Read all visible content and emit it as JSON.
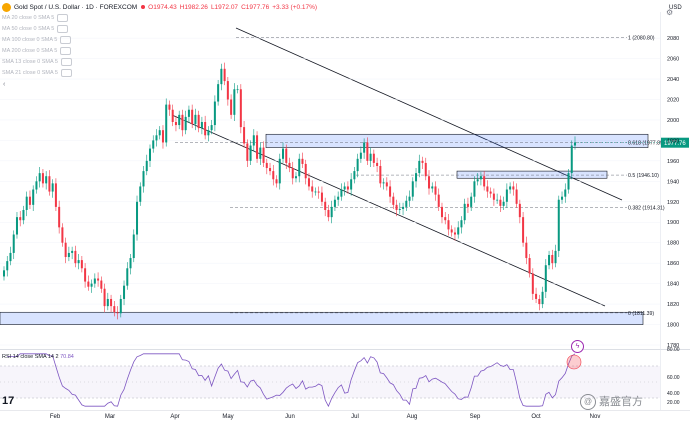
{
  "header": {
    "title": "Gold Spot / U.S. Dollar · 1D · FOREXCOM",
    "open": "O1974.43",
    "high": "H1982.26",
    "low": "L1972.07",
    "close": "C1977.76",
    "change": "+3.33 (+0.17%)"
  },
  "indicators": [
    "MA 20 close 0 SMA 5",
    "MA 50 close 0 SMA 5",
    "MA 100 close 0 SMA 5",
    "MA 200 close 0 SMA 5",
    "SMA 13 close 0 SMA 5",
    "SMA 21 close 0 SMA 5"
  ],
  "currency": "USD",
  "rsi": {
    "label": "RSI 14 close SMA 14 2",
    "value": "70.84"
  },
  "brand": "17",
  "watermark": "嘉盛官方",
  "colors": {
    "up": "#089981",
    "down": "#f23645",
    "rsi": "#7e57c2",
    "zone": "#2962ff"
  },
  "chart_data": {
    "type": "candlestick",
    "symbol": "Gold Spot / U.S. Dollar",
    "interval": "1D",
    "y_ticks": [
      1780,
      1800,
      1820,
      1840,
      1860,
      1880,
      1900,
      1920,
      1940,
      1960,
      1980,
      2000,
      2020,
      2040,
      2060,
      2080
    ],
    "ylim": [
      1780,
      2085
    ],
    "x_labels": [
      "Feb",
      "Mar",
      "Apr",
      "May",
      "Jun",
      "Jul",
      "Aug",
      "Sep",
      "Oct",
      "Nov"
    ],
    "fib_levels": [
      {
        "label": "1 (2080.80)",
        "value": 2080.8
      },
      {
        "label": "0.618 (1977.89)",
        "value": 1977.89
      },
      {
        "label": "0.5 (1946.10)",
        "value": 1946.1
      },
      {
        "label": "0.382 (1914.31)",
        "value": 1914.31
      },
      {
        "label": "0 (1811.39)",
        "value": 1811.39
      }
    ],
    "last_price": "1977.76",
    "zones": [
      [
        1973,
        1986
      ],
      [
        1943,
        1950
      ],
      [
        1800,
        1812
      ]
    ],
    "close": [
      1853,
      1862,
      1870,
      1888,
      1905,
      1902,
      1912,
      1925,
      1917,
      1932,
      1940,
      1948,
      1938,
      1945,
      1930,
      1938,
      1915,
      1895,
      1880,
      1866,
      1870,
      1872,
      1860,
      1863,
      1855,
      1842,
      1837,
      1840,
      1845,
      1843,
      1835,
      1818,
      1825,
      1818,
      1812,
      1811,
      1825,
      1838,
      1855,
      1865,
      1888,
      1920,
      1935,
      1950,
      1960,
      1972,
      1980,
      1985,
      1990,
      1978,
      2015,
      2010,
      1998,
      1995,
      2005,
      1990,
      2003,
      2010,
      1996,
      2005,
      1992,
      1998,
      1985,
      1990,
      1995,
      2018,
      2035,
      2050,
      2038,
      2020,
      2005,
      2030,
      2030,
      1993,
      1977,
      1960,
      1975,
      1985,
      1962,
      1973,
      1958,
      1953,
      1950,
      1942,
      1938,
      1962,
      1972,
      1958,
      1953,
      1943,
      1945,
      1962,
      1957,
      1943,
      1935,
      1930,
      1930,
      1929,
      1920,
      1912,
      1905,
      1915,
      1922,
      1925,
      1932,
      1935,
      1932,
      1942,
      1950,
      1962,
      1968,
      1978,
      1960,
      1967,
      1958,
      1955,
      1938,
      1939,
      1935,
      1925,
      1917,
      1912,
      1913,
      1915,
      1921,
      1925,
      1940,
      1948,
      1960,
      1958,
      1945,
      1933,
      1935,
      1927,
      1915,
      1905,
      1902,
      1893,
      1890,
      1888,
      1895,
      1902,
      1918,
      1915,
      1925,
      1940,
      1942,
      1945,
      1935,
      1930,
      1928,
      1922,
      1922,
      1916,
      1920,
      1932,
      1935,
      1932,
      1918,
      1905,
      1880,
      1865,
      1850,
      1830,
      1825,
      1820,
      1832,
      1858,
      1868,
      1860,
      1872,
      1922,
      1925,
      1932,
      1948,
      1975,
      1978
    ]
  }
}
